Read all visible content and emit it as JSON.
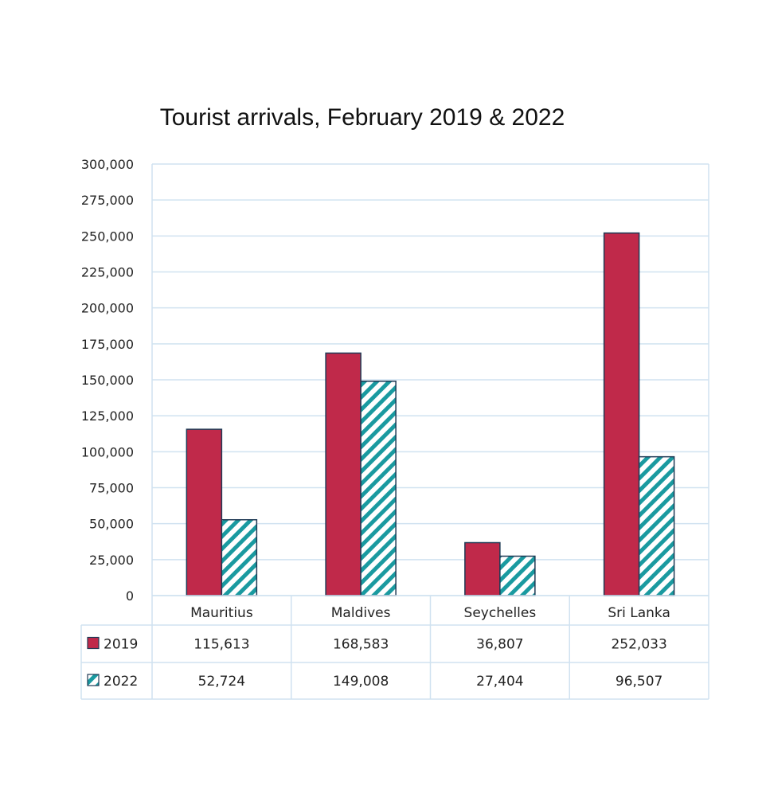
{
  "chart_data": {
    "type": "bar",
    "title": "Tourist arrivals, February 2019 & 2022",
    "categories": [
      "Mauritius",
      "Maldives",
      "Seychelles",
      "Sri Lanka"
    ],
    "series": [
      {
        "name": "2019",
        "values": [
          115613,
          168583,
          36807,
          252033
        ],
        "labels": [
          "115,613",
          "168,583",
          "36,807",
          "252,033"
        ],
        "pattern": "solid"
      },
      {
        "name": "2022",
        "values": [
          52724,
          149008,
          27404,
          96507
        ],
        "labels": [
          "52,724",
          "149,008",
          "27,404",
          "96,507"
        ],
        "pattern": "diagonal-stripes"
      }
    ],
    "ylim": [
      0,
      300000
    ],
    "yticks": [
      0,
      25000,
      50000,
      75000,
      100000,
      125000,
      150000,
      175000,
      200000,
      225000,
      250000,
      275000,
      300000
    ],
    "ytick_labels": [
      "0",
      "25,000",
      "50,000",
      "75,000",
      "100,000",
      "125,000",
      "150,000",
      "175,000",
      "200,000",
      "225,000",
      "250,000",
      "275,000",
      "300,000"
    ],
    "grid": true,
    "legend": "data-table",
    "colors": {
      "2019": "#c0294a",
      "2022": "#1a9aa0",
      "outline": "#1f3a55",
      "grid": "#d0e2f0"
    }
  }
}
